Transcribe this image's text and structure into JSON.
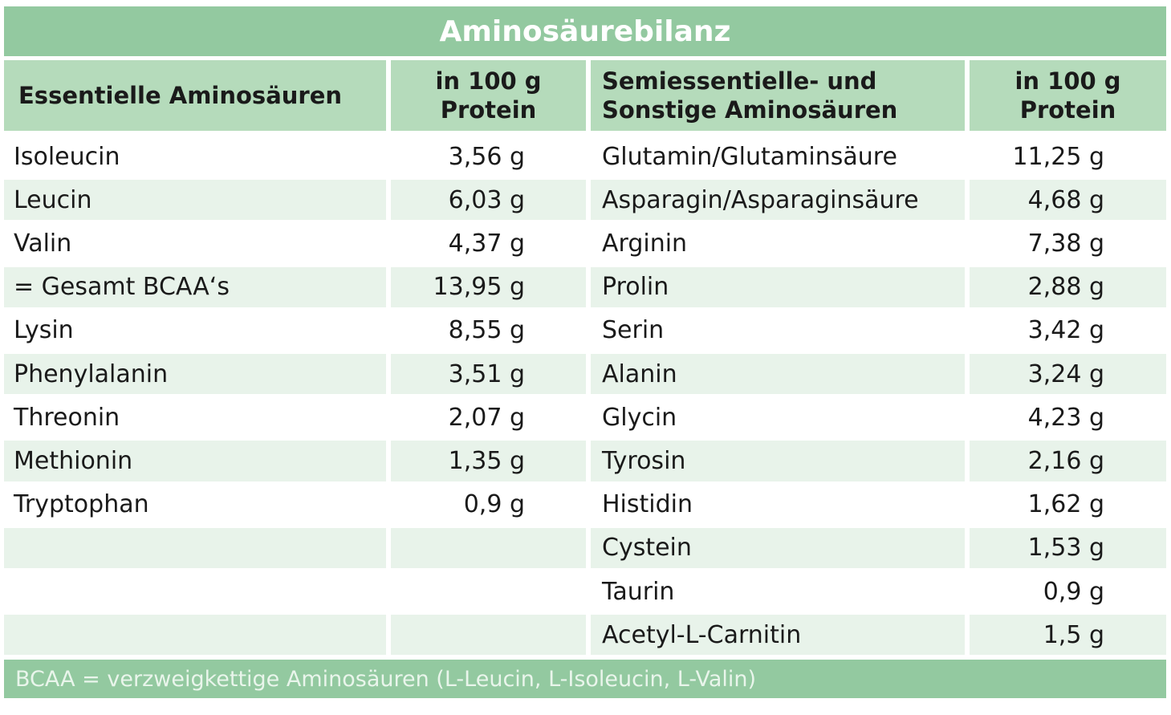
{
  "header": {
    "title": "Aminosäurebilanz"
  },
  "table": {
    "columns": [
      "Essentielle Aminosäuren",
      "in 100 g Protein",
      "Semiessentielle- und Sonstige Aminosäuren",
      "in 100 g Protein"
    ],
    "left_rows": [
      [
        "Isoleucin",
        "3,56 g"
      ],
      [
        "Leucin",
        "6,03 g"
      ],
      [
        "Valin",
        "4,37 g"
      ],
      [
        "= Gesamt BCAA‘s",
        "13,95 g"
      ],
      [
        "Lysin",
        "8,55 g"
      ],
      [
        "Phenylalanin",
        "3,51 g"
      ],
      [
        "Threonin",
        "2,07 g"
      ],
      [
        "Methionin",
        "1,35 g"
      ],
      [
        "Tryptophan",
        "0,9 g"
      ]
    ],
    "right_rows": [
      [
        "Glutamin/Glutaminsäure",
        "11,25 g"
      ],
      [
        "Asparagin/Asparaginsäure",
        "4,68 g"
      ],
      [
        "Arginin",
        "7,38 g"
      ],
      [
        "Prolin",
        "2,88 g"
      ],
      [
        "Serin",
        "3,42 g"
      ],
      [
        "Alanin",
        "3,24 g"
      ],
      [
        "Glycin",
        "4,23 g"
      ],
      [
        "Tyrosin",
        "2,16 g"
      ],
      [
        "Histidin",
        "1,62 g"
      ],
      [
        "Cystein",
        "1,53 g"
      ],
      [
        "Taurin",
        "0,9 g"
      ],
      [
        "Acetyl-L-Carnitin",
        "1,5 g"
      ]
    ]
  },
  "footer": {
    "note": "BCAA = verzweigkettige Aminosäuren (L-Leucin, L-Isoleucin, L-Valin)"
  }
}
